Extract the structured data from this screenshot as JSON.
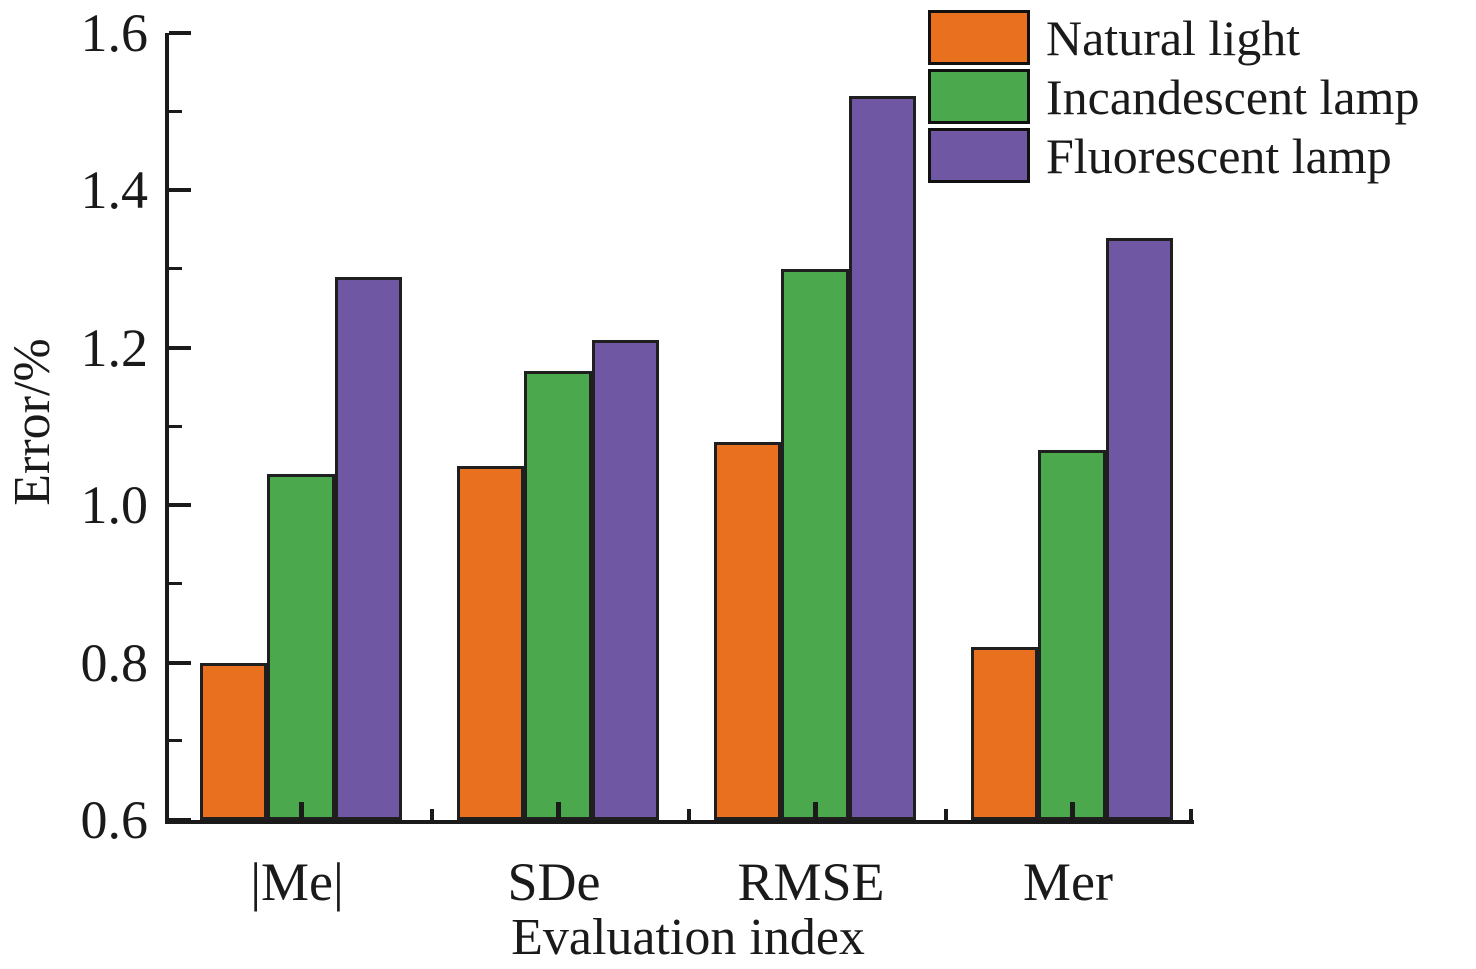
{
  "chart_data": {
    "type": "bar",
    "title": "",
    "xlabel": "Evaluation index",
    "ylabel": "Error/%",
    "categories": [
      "|Me|",
      "SDe",
      "RMSE",
      "Mer"
    ],
    "series": [
      {
        "name": "Natural light",
        "color": "#E8701E",
        "values": [
          0.8,
          1.05,
          1.08,
          0.82
        ]
      },
      {
        "name": "Incandescent lamp",
        "color": "#4BA84C",
        "values": [
          1.04,
          1.17,
          1.3,
          1.07
        ]
      },
      {
        "name": "Fluorescent lamp",
        "color": "#7057A4",
        "values": [
          1.29,
          1.21,
          1.52,
          1.34
        ]
      }
    ],
    "ylim": [
      0.6,
      1.6
    ],
    "ytick_labels": [
      "0.6",
      "0.8",
      "1.0",
      "1.2",
      "1.4",
      "1.6"
    ],
    "ytick_values_major": [
      0.6,
      0.8,
      1.0,
      1.2,
      1.4,
      1.6
    ],
    "ytick_values_minor": [
      0.7,
      0.9,
      1.1,
      1.3,
      1.5
    ],
    "grid": false,
    "legend_position": "top-right",
    "axis_color": "#1a1a1a"
  }
}
